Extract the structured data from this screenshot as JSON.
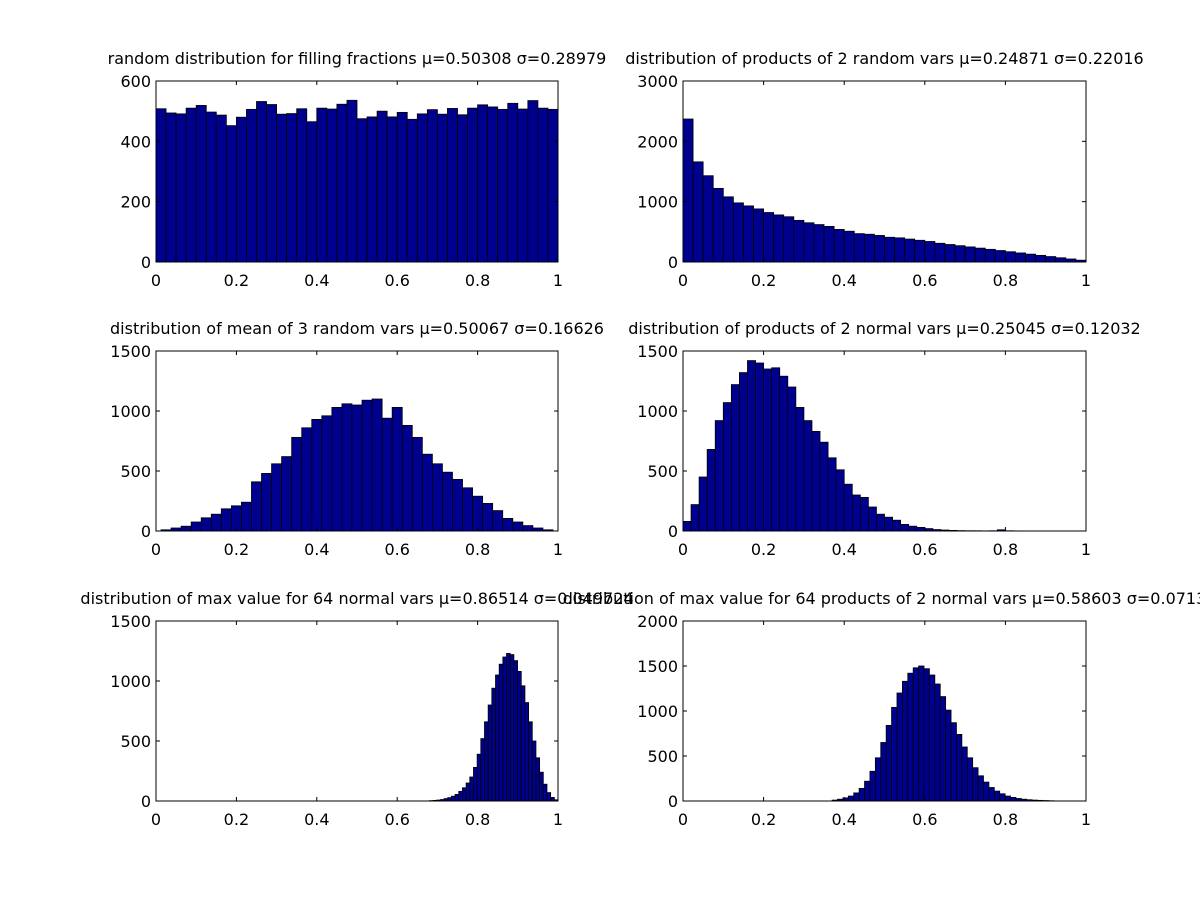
{
  "figure": {
    "background": "#ffffff",
    "bar_fill": "#00008f",
    "bar_edge": "#000000"
  },
  "chart_data": [
    {
      "type": "bar",
      "title": "random distribution for filling fractions μ=0.50308 σ=0.28979",
      "xlim": [
        0,
        1
      ],
      "ylim": [
        0,
        600
      ],
      "xticks": [
        "0",
        "0.2",
        "0.4",
        "0.6",
        "0.8",
        "1"
      ],
      "yticks": [
        "0",
        "200",
        "400",
        "600"
      ],
      "bin_range": [
        0,
        1
      ],
      "values": [
        508,
        494,
        491,
        510,
        519,
        497,
        487,
        452,
        480,
        506,
        532,
        522,
        490,
        492,
        508,
        465,
        510,
        507,
        523,
        536,
        475,
        481,
        500,
        481,
        496,
        473,
        491,
        505,
        490,
        509,
        488,
        510,
        521,
        514,
        506,
        526,
        507,
        535,
        510,
        506
      ]
    },
    {
      "type": "bar",
      "title": "distribution of products of 2 random vars μ=0.24871 σ=0.22016",
      "xlim": [
        0,
        1
      ],
      "ylim": [
        0,
        3000
      ],
      "xticks": [
        "0",
        "0.2",
        "0.4",
        "0.6",
        "0.8",
        "1"
      ],
      "yticks": [
        "0",
        "1000",
        "2000",
        "3000"
      ],
      "bin_range": [
        0,
        1
      ],
      "values": [
        2370,
        1660,
        1430,
        1220,
        1080,
        980,
        930,
        880,
        820,
        780,
        750,
        690,
        650,
        620,
        590,
        540,
        510,
        470,
        460,
        440,
        410,
        400,
        380,
        360,
        340,
        310,
        290,
        270,
        250,
        230,
        210,
        190,
        170,
        150,
        130,
        110,
        90,
        70,
        50,
        30
      ]
    },
    {
      "type": "bar",
      "title": "distribution of mean of 3 random vars μ=0.50067 σ=0.16626",
      "xlim": [
        0,
        1
      ],
      "ylim": [
        0,
        1500
      ],
      "xticks": [
        "0",
        "0.2",
        "0.4",
        "0.6",
        "0.8",
        "1"
      ],
      "yticks": [
        "0",
        "500",
        "1000",
        "1500"
      ],
      "bin_range": [
        0.0125,
        0.9875
      ],
      "values": [
        10,
        25,
        40,
        75,
        110,
        140,
        185,
        210,
        240,
        410,
        480,
        560,
        620,
        780,
        860,
        930,
        960,
        1030,
        1060,
        1050,
        1090,
        1100,
        940,
        1030,
        880,
        780,
        640,
        560,
        490,
        430,
        360,
        290,
        230,
        170,
        105,
        75,
        45,
        25,
        10
      ]
    },
    {
      "type": "bar",
      "title": "distribution of products of 2 normal vars μ=0.25045 σ=0.12032",
      "xlim": [
        0,
        1
      ],
      "ylim": [
        0,
        1500
      ],
      "xticks": [
        "0",
        "0.2",
        "0.4",
        "0.6",
        "0.8",
        "1"
      ],
      "yticks": [
        "0",
        "500",
        "1000",
        "1500"
      ],
      "bin_range": [
        0.0,
        0.84
      ],
      "values": [
        80,
        220,
        450,
        680,
        920,
        1070,
        1220,
        1320,
        1420,
        1400,
        1350,
        1360,
        1290,
        1200,
        1030,
        920,
        830,
        740,
        610,
        510,
        390,
        300,
        280,
        200,
        140,
        115,
        90,
        55,
        40,
        30,
        20,
        12,
        8,
        5,
        3,
        2,
        2,
        1,
        2,
        10,
        2,
        1
      ]
    },
    {
      "type": "bar",
      "title": "distribution of max value for 64 normal vars μ=0.86514 σ=0.049724",
      "xlim": [
        0,
        1
      ],
      "ylim": [
        0,
        1500
      ],
      "xticks": [
        "0",
        "0.2",
        "0.4",
        "0.6",
        "0.8",
        "1"
      ],
      "yticks": [
        "0",
        "500",
        "1000",
        "1500"
      ],
      "bin_range": [
        0.68,
        1.0
      ],
      "values": [
        3,
        5,
        8,
        12,
        20,
        28,
        40,
        55,
        80,
        110,
        150,
        200,
        280,
        390,
        520,
        660,
        800,
        940,
        1050,
        1140,
        1200,
        1230,
        1220,
        1170,
        1080,
        960,
        820,
        660,
        500,
        360,
        240,
        140,
        70,
        30,
        10
      ]
    },
    {
      "type": "bar",
      "title": "distribution of max value for 64 products of 2 normal vars μ=0.58603 σ=0.0713",
      "xlim": [
        0,
        1
      ],
      "ylim": [
        0,
        2000
      ],
      "xticks": [
        "0",
        "0.2",
        "0.4",
        "0.6",
        "0.8",
        "1"
      ],
      "yticks": [
        "0",
        "500",
        "1000",
        "1500",
        "2000"
      ],
      "bin_range": [
        0.37,
        0.92
      ],
      "values": [
        10,
        20,
        35,
        55,
        90,
        140,
        220,
        330,
        480,
        650,
        840,
        1040,
        1200,
        1330,
        1420,
        1480,
        1500,
        1470,
        1400,
        1300,
        1160,
        1010,
        870,
        740,
        600,
        480,
        370,
        280,
        210,
        150,
        110,
        80,
        55,
        40,
        28,
        20,
        14,
        10,
        7,
        5,
        3
      ]
    }
  ]
}
